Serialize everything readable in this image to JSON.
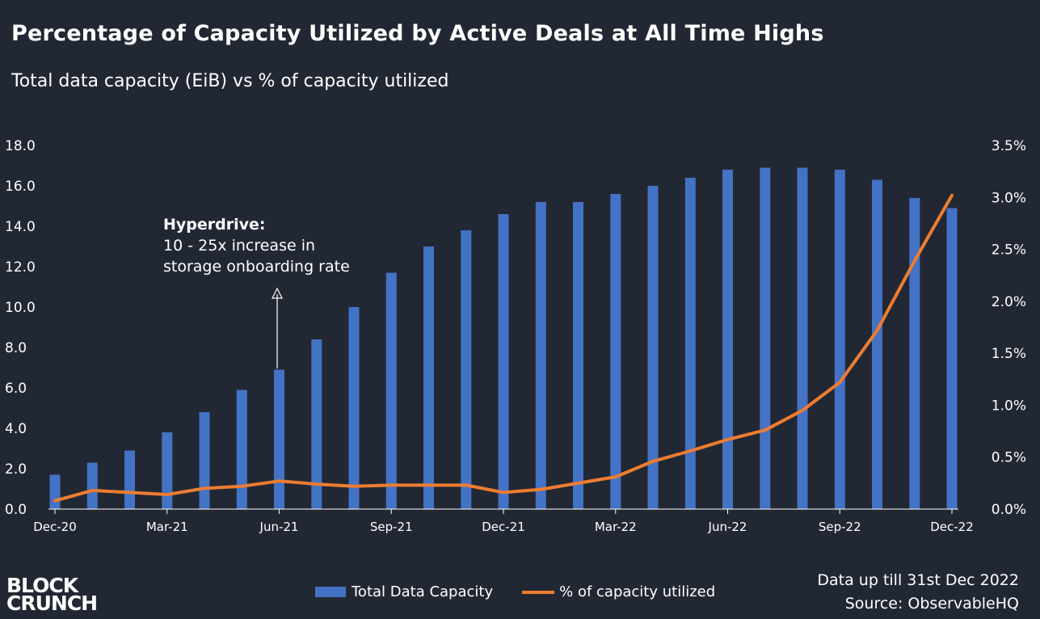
{
  "title": "Percentage of Capacity Utilized by Active Deals at All Time Highs",
  "subtitle": "Total data capacity (EiB) vs % of capacity utilized",
  "annotation": {
    "heading": "Hyperdrive:",
    "line1": "10 - 25x increase in",
    "line2": "storage onboarding rate"
  },
  "legend": {
    "bar_label": "Total Data Capacity",
    "line_label": "% of capacity utilized"
  },
  "note": {
    "line1": "Data up till 31st Dec 2022",
    "line2": "Source: ObservableHQ"
  },
  "logo": {
    "line1": "BLOCK",
    "line2": "CRUNCH"
  },
  "colors": {
    "background": "#222833",
    "bar": "#4472c4",
    "line": "#ed7d31",
    "text": "#ffffff"
  },
  "chart_data": {
    "type": "bar+line",
    "categories": [
      "Dec-20",
      "Jan-21",
      "Feb-21",
      "Mar-21",
      "Apr-21",
      "May-21",
      "Jun-21",
      "Jul-21",
      "Aug-21",
      "Sep-21",
      "Oct-21",
      "Nov-21",
      "Dec-21",
      "Jan-22",
      "Feb-22",
      "Mar-22",
      "Apr-22",
      "May-22",
      "Jun-22",
      "Jul-22",
      "Aug-22",
      "Sep-22",
      "Oct-22",
      "Nov-22",
      "Dec-22"
    ],
    "x_tick_labels": [
      "Dec-20",
      "",
      "",
      "Mar-21",
      "",
      "",
      "Jun-21",
      "",
      "",
      "Sep-21",
      "",
      "",
      "Dec-21",
      "",
      "",
      "Mar-22",
      "",
      "",
      "Jun-22",
      "",
      "",
      "Sep-22",
      "",
      "",
      "Dec-22"
    ],
    "series": [
      {
        "name": "Total Data Capacity",
        "type": "bar",
        "axis": "left",
        "values": [
          1.7,
          2.3,
          2.9,
          3.8,
          4.8,
          5.9,
          6.9,
          8.4,
          10.0,
          11.7,
          13.0,
          13.8,
          14.6,
          15.2,
          15.2,
          15.6,
          16.0,
          16.4,
          16.8,
          16.9,
          16.9,
          16.8,
          16.3,
          15.4,
          14.9
        ]
      },
      {
        "name": "% of capacity utilized",
        "type": "line",
        "axis": "right",
        "values": [
          0.08,
          0.18,
          0.16,
          0.14,
          0.2,
          0.22,
          0.27,
          0.24,
          0.22,
          0.23,
          0.23,
          0.23,
          0.16,
          0.19,
          0.25,
          0.31,
          0.46,
          0.56,
          0.67,
          0.76,
          0.95,
          1.22,
          1.72,
          2.39,
          3.02
        ]
      }
    ],
    "left_axis": {
      "min": 0,
      "max": 18,
      "tick_labels": [
        "0.0",
        "2.0",
        "4.0",
        "6.0",
        "8.0",
        "10.0",
        "12.0",
        "14.0",
        "16.0",
        "18.0"
      ]
    },
    "right_axis": {
      "min": 0,
      "max": 3.5,
      "tick_labels": [
        "0.0%",
        "0.5%",
        "1.0%",
        "1.5%",
        "2.0%",
        "2.5%",
        "3.0%",
        "3.5%"
      ]
    },
    "grid": false,
    "legend_position": "bottom"
  }
}
